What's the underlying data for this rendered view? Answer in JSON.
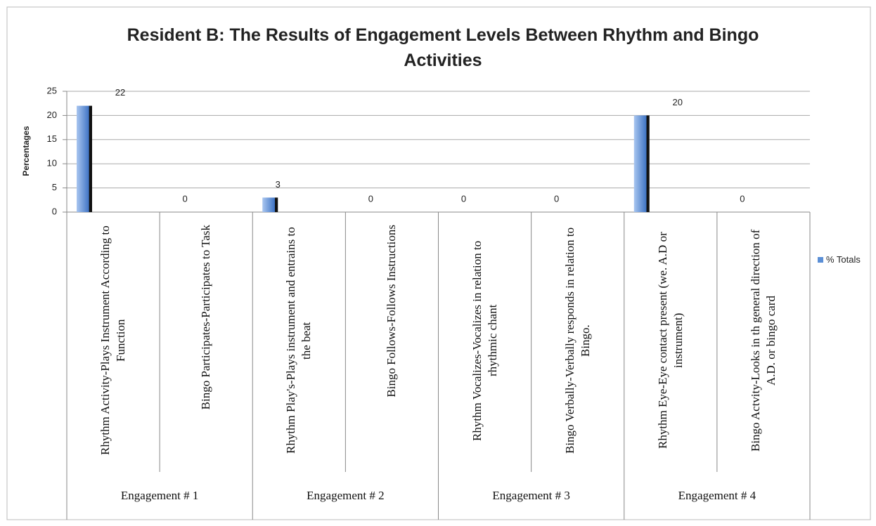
{
  "chart_data": {
    "type": "bar",
    "title": "Resident B: The Results of Engagement Levels Between Rhythm and Bingo Activities",
    "y_label": "Percentages",
    "categories": [
      "Rhythm Activity-Plays Instrument According to Function",
      "Bingo Participates-Participates to Task",
      "Rhythm Play's-Plays instrument and entrains to the beat",
      "Bingo Follows-Follows Instructions",
      "Rhythm Vocalizes-Vocalizes in relation to rhythmic chant",
      "Bingo Verbally-Verbally responds in relation to Bingo.",
      "Rhythm Eye-Eye contact present (we. A.D or instrument)",
      "Bingo Actvity-Looks in th general direction of A.D. or bingo card"
    ],
    "groups": [
      "Engagement # 1",
      "Engagement # 2",
      "Engagement # 3",
      "Engagement # 4"
    ],
    "series": [
      {
        "name": "% Totals",
        "color": "#5b8fd6",
        "values": [
          22,
          0,
          3,
          0,
          0,
          0,
          20,
          0
        ]
      }
    ],
    "ylim": [
      0,
      25
    ],
    "yticks": [
      0,
      5,
      10,
      15,
      20,
      25
    ],
    "grid": true,
    "legend": "right"
  }
}
